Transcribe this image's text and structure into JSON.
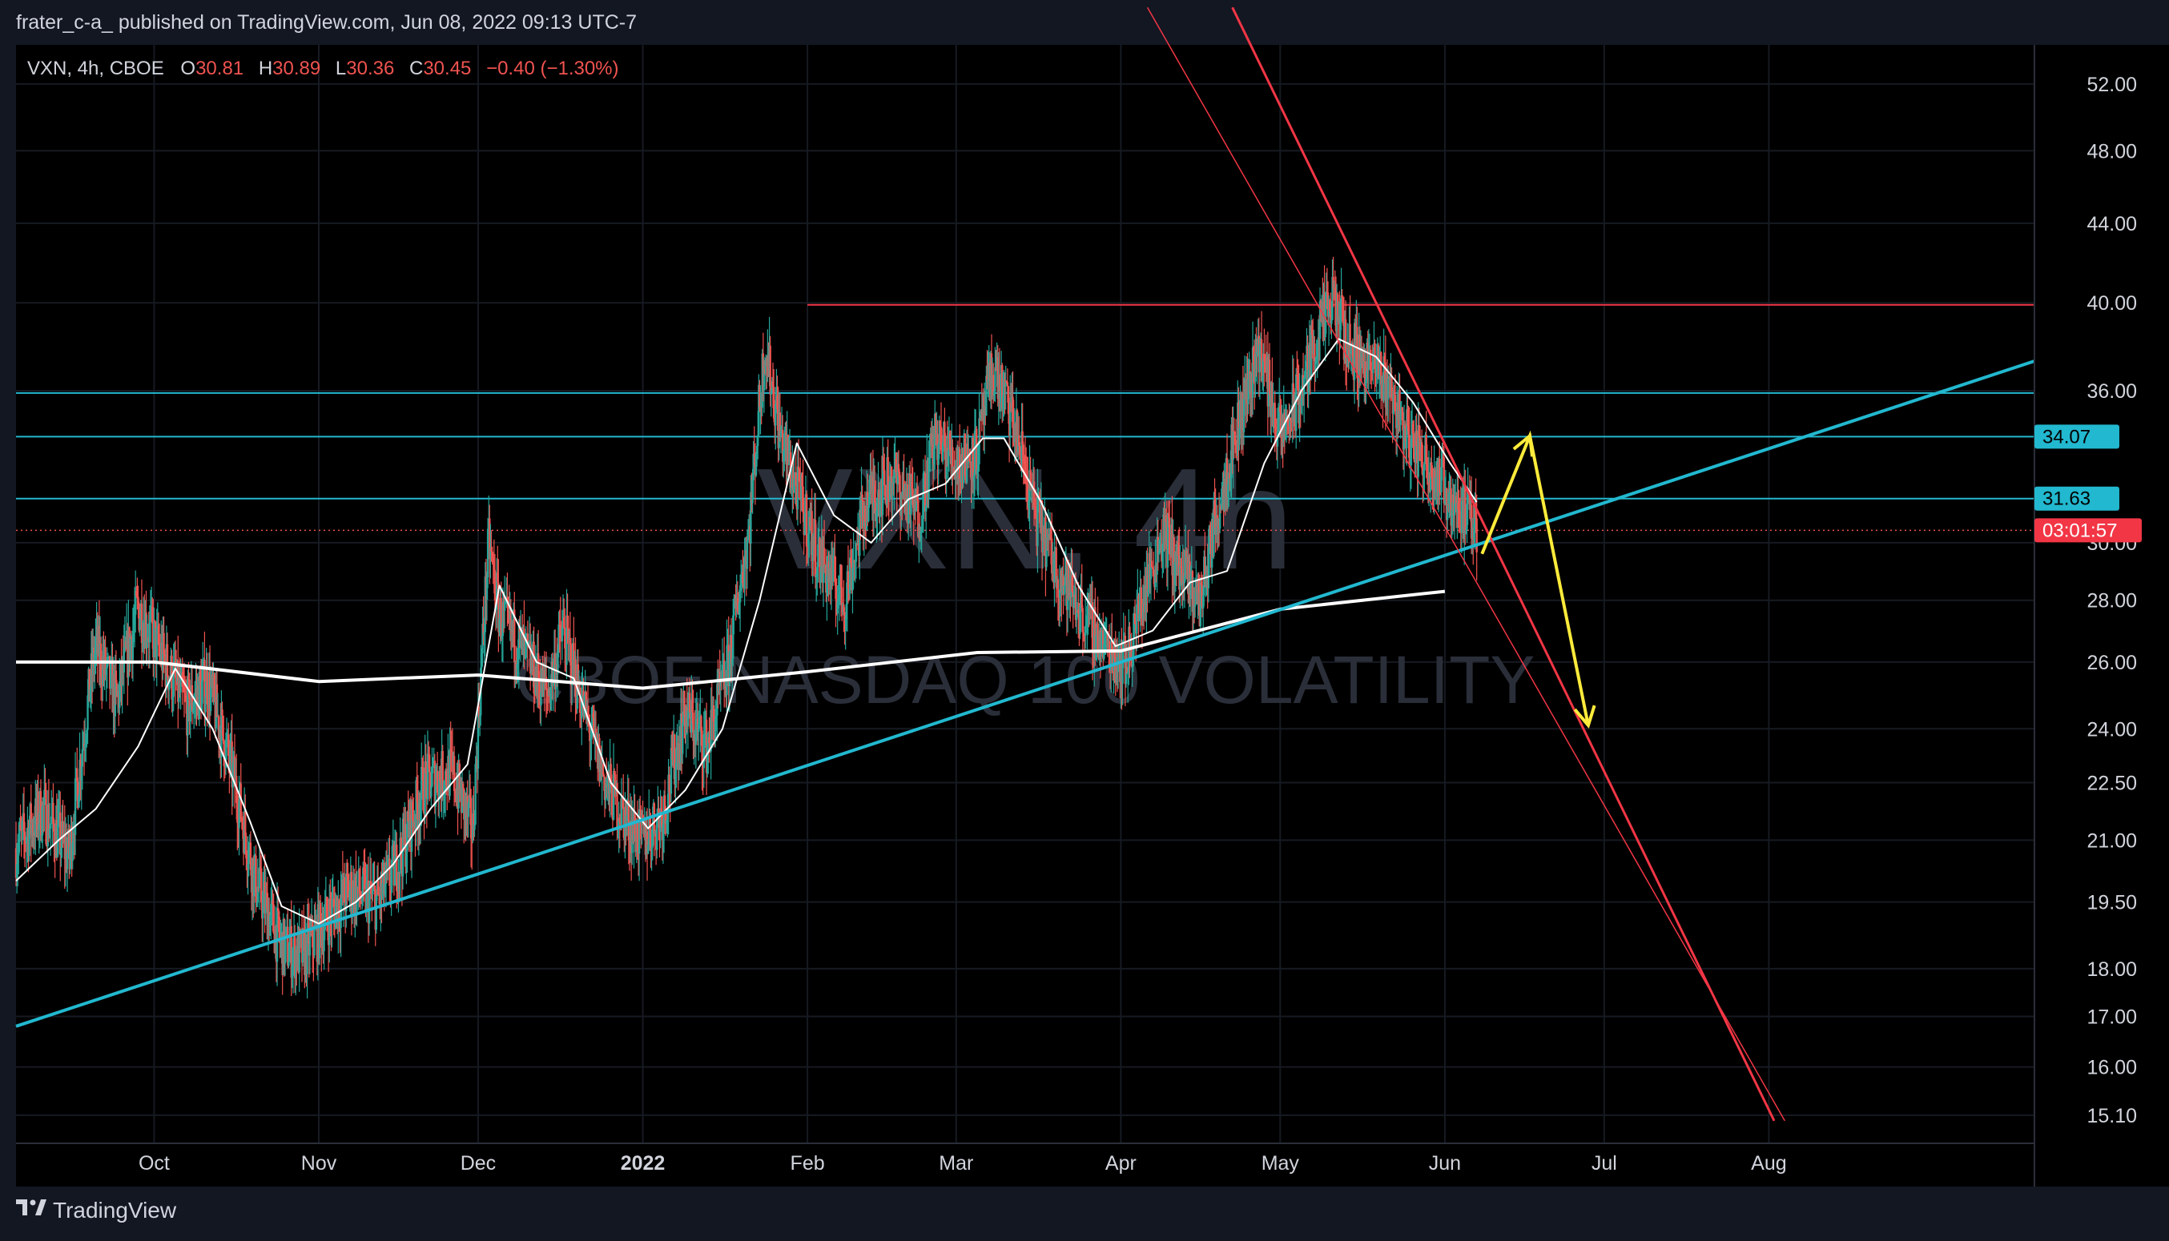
{
  "header": {
    "published_text": "frater_c-a_ published on TradingView.com, Jun 08, 2022 09:13 UTC-7"
  },
  "footer": {
    "brand": "TradingView"
  },
  "legend": {
    "symbol": "VXN, 4h, CBOE",
    "o_label": "O",
    "o_value": "30.81",
    "h_label": "H",
    "h_value": "30.89",
    "l_label": "L",
    "l_value": "30.36",
    "c_label": "C",
    "c_value": "30.45",
    "change": "−0.40 (−1.30%)"
  },
  "watermark": {
    "symbol": "VXN, 4h",
    "name": "CBOE NASDAQ 100 VOLATILITY"
  },
  "colors": {
    "background": "#000000",
    "up": "#26a69a",
    "down": "#ef5350",
    "resistance": "#f23645",
    "support": "#22b8cf",
    "arrow": "#ffeb3b",
    "ma_fast": "#ffffff",
    "ma_slow": "#ffffff"
  },
  "chart_data": {
    "type": "candlestick",
    "symbol": "VXN",
    "interval": "4h",
    "exchange": "CBOE",
    "y_axis": {
      "scale": "log",
      "range": [
        14.6,
        54.5
      ],
      "position": "right",
      "ticks": [
        "52.00",
        "48.00",
        "44.00",
        "40.00",
        "36.00",
        "30.00",
        "28.00",
        "26.00",
        "24.00",
        "22.50",
        "21.00",
        "19.50",
        "18.00",
        "17.00",
        "16.00",
        "15.10"
      ]
    },
    "x_axis": {
      "range": [
        "2021-09-05",
        "2022-09-20"
      ],
      "ticks": [
        {
          "date": "2021-10-01",
          "label": "Oct"
        },
        {
          "date": "2021-11-01",
          "label": "Nov"
        },
        {
          "date": "2021-12-01",
          "label": "Dec"
        },
        {
          "date": "2022-01-01",
          "label": "2022"
        },
        {
          "date": "2022-02-01",
          "label": "Feb"
        },
        {
          "date": "2022-03-01",
          "label": "Mar"
        },
        {
          "date": "2022-04-01",
          "label": "Apr"
        },
        {
          "date": "2022-05-01",
          "label": "May"
        },
        {
          "date": "2022-06-01",
          "label": "Jun"
        },
        {
          "date": "2022-07-01",
          "label": "Jul"
        },
        {
          "date": "2022-08-01",
          "label": "Aug"
        }
      ]
    },
    "price_tags": [
      {
        "value": 34.07,
        "label": "34.07",
        "color": "#22b8cf"
      },
      {
        "value": 31.63,
        "label": "31.63",
        "color": "#22b8cf"
      },
      {
        "value": 30.45,
        "label": "03:01:57",
        "color": "#f23645"
      }
    ],
    "closes": [
      [
        "2021-09-05",
        20.8
      ],
      [
        "2021-09-10",
        21.8
      ],
      [
        "2021-09-15",
        20.6
      ],
      [
        "2021-09-20",
        26.5
      ],
      [
        "2021-09-24",
        24.8
      ],
      [
        "2021-09-28",
        27.8
      ],
      [
        "2021-10-03",
        26.0
      ],
      [
        "2021-10-07",
        24.6
      ],
      [
        "2021-10-11",
        25.4
      ],
      [
        "2021-10-16",
        22.6
      ],
      [
        "2021-10-20",
        20.0
      ],
      [
        "2021-10-25",
        18.5
      ],
      [
        "2021-10-29",
        18.3
      ],
      [
        "2021-11-03",
        19.2
      ],
      [
        "2021-11-07",
        19.8
      ],
      [
        "2021-11-12",
        19.5
      ],
      [
        "2021-11-16",
        20.5
      ],
      [
        "2021-11-21",
        22.5
      ],
      [
        "2021-11-26",
        22.8
      ],
      [
        "2021-11-30",
        21.2
      ],
      [
        "2021-12-03",
        30.0
      ],
      [
        "2021-12-05",
        27.5
      ],
      [
        "2021-12-09",
        26.5
      ],
      [
        "2021-12-14",
        25.0
      ],
      [
        "2021-12-17",
        27.0
      ],
      [
        "2021-12-21",
        24.5
      ],
      [
        "2021-12-25",
        22.5
      ],
      [
        "2021-12-29",
        21.5
      ],
      [
        "2022-01-01",
        21.0
      ],
      [
        "2022-01-05",
        21.8
      ],
      [
        "2022-01-09",
        24.5
      ],
      [
        "2022-01-13",
        23.5
      ],
      [
        "2022-01-17",
        25.8
      ],
      [
        "2022-01-21",
        30.5
      ],
      [
        "2022-01-24",
        38.0
      ],
      [
        "2022-01-27",
        34.0
      ],
      [
        "2022-01-30",
        32.0
      ],
      [
        "2022-02-03",
        29.5
      ],
      [
        "2022-02-08",
        28.0
      ],
      [
        "2022-02-12",
        31.5
      ],
      [
        "2022-02-17",
        32.5
      ],
      [
        "2022-02-22",
        31.0
      ],
      [
        "2022-02-25",
        34.0
      ],
      [
        "2022-03-01",
        33.0
      ],
      [
        "2022-03-05",
        33.5
      ],
      [
        "2022-03-08",
        37.0
      ],
      [
        "2022-03-12",
        34.5
      ],
      [
        "2022-03-16",
        31.0
      ],
      [
        "2022-03-20",
        29.0
      ],
      [
        "2022-03-25",
        27.5
      ],
      [
        "2022-03-29",
        26.5
      ],
      [
        "2022-04-02",
        26.0
      ],
      [
        "2022-04-05",
        28.0
      ],
      [
        "2022-04-09",
        30.5
      ],
      [
        "2022-04-12",
        29.0
      ],
      [
        "2022-04-16",
        28.0
      ],
      [
        "2022-04-20",
        32.0
      ],
      [
        "2022-04-23",
        34.5
      ],
      [
        "2022-04-27",
        38.0
      ],
      [
        "2022-05-01",
        34.0
      ],
      [
        "2022-05-05",
        36.0
      ],
      [
        "2022-05-08",
        38.5
      ],
      [
        "2022-05-11",
        40.0
      ],
      [
        "2022-05-14",
        38.0
      ],
      [
        "2022-05-18",
        37.0
      ],
      [
        "2022-05-21",
        36.5
      ],
      [
        "2022-05-25",
        34.0
      ],
      [
        "2022-05-29",
        33.0
      ],
      [
        "2022-06-01",
        32.0
      ],
      [
        "2022-06-05",
        31.0
      ],
      [
        "2022-06-07",
        30.45
      ]
    ],
    "ma_fast": [
      [
        "2021-09-05",
        20.0
      ],
      [
        "2021-09-13",
        21.0
      ],
      [
        "2021-09-20",
        21.8
      ],
      [
        "2021-09-28",
        23.5
      ],
      [
        "2021-10-05",
        25.8
      ],
      [
        "2021-10-12",
        24.0
      ],
      [
        "2021-10-19",
        21.5
      ],
      [
        "2021-10-25",
        19.4
      ],
      [
        "2021-11-01",
        19.0
      ],
      [
        "2021-11-08",
        19.5
      ],
      [
        "2021-11-15",
        20.4
      ],
      [
        "2021-11-22",
        21.8
      ],
      [
        "2021-11-29",
        23.0
      ],
      [
        "2021-12-05",
        28.5
      ],
      [
        "2021-12-12",
        26.0
      ],
      [
        "2021-12-19",
        25.5
      ],
      [
        "2021-12-26",
        22.5
      ],
      [
        "2022-01-02",
        21.3
      ],
      [
        "2022-01-09",
        22.3
      ],
      [
        "2022-01-16",
        24.0
      ],
      [
        "2022-01-23",
        28.0
      ],
      [
        "2022-01-30",
        33.8
      ],
      [
        "2022-02-06",
        31.0
      ],
      [
        "2022-02-13",
        30.0
      ],
      [
        "2022-02-20",
        31.6
      ],
      [
        "2022-02-27",
        32.2
      ],
      [
        "2022-03-06",
        34.0
      ],
      [
        "2022-03-10",
        34.0
      ],
      [
        "2022-03-17",
        31.5
      ],
      [
        "2022-03-24",
        28.5
      ],
      [
        "2022-03-31",
        26.5
      ],
      [
        "2022-04-07",
        27.0
      ],
      [
        "2022-04-14",
        28.6
      ],
      [
        "2022-04-21",
        29.0
      ],
      [
        "2022-04-28",
        33.0
      ],
      [
        "2022-05-05",
        36.0
      ],
      [
        "2022-05-12",
        38.3
      ],
      [
        "2022-05-19",
        37.5
      ],
      [
        "2022-05-26",
        35.5
      ],
      [
        "2022-06-02",
        33.0
      ],
      [
        "2022-06-07",
        31.5
      ]
    ],
    "ma_slow": [
      [
        "2021-09-05",
        26.0
      ],
      [
        "2021-10-01",
        26.0
      ],
      [
        "2021-11-01",
        25.4
      ],
      [
        "2021-12-01",
        25.6
      ],
      [
        "2022-01-01",
        25.2
      ],
      [
        "2022-02-01",
        25.7
      ],
      [
        "2022-03-05",
        26.3
      ],
      [
        "2022-04-01",
        26.35
      ],
      [
        "2022-05-01",
        27.7
      ],
      [
        "2022-06-01",
        28.3
      ]
    ],
    "drawings": {
      "support_line": {
        "from": [
          "2021-09-05",
          16.8
        ],
        "to": [
          "2022-09-20",
          37.3
        ]
      },
      "horizontal_lines": [
        {
          "value": 35.9,
          "color": "#22b8cf"
        },
        {
          "value": 34.07,
          "color": "#22b8cf"
        },
        {
          "value": 31.63,
          "color": "#22b8cf"
        },
        {
          "value": 39.9,
          "color": "#f23645",
          "from": "2022-02-01"
        }
      ],
      "resistance_lines": [
        {
          "from": [
            "2022-04-22",
            57.0
          ],
          "to": [
            "2022-08-02",
            15.0
          ],
          "width": 3
        },
        {
          "from": [
            "2022-04-06",
            57.0
          ],
          "to": [
            "2022-08-04",
            15.0
          ],
          "width": 1.5
        }
      ],
      "arrow_path": [
        [
          "2022-06-08",
          29.6
        ],
        [
          "2022-06-17",
          34.1
        ],
        [
          "2022-06-28",
          24.1
        ]
      ]
    }
  }
}
